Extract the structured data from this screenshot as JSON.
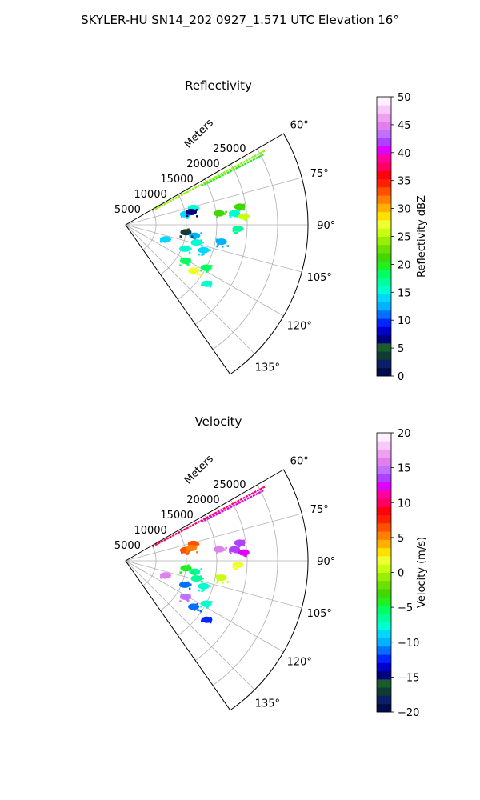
{
  "figure": {
    "suptitle": "SKYLER-HU  SN14_202  0927_1.571 UTC Elevation 16°"
  },
  "chart_data": [
    {
      "type": "polar-sector",
      "title": "Reflectivity",
      "radial_label": "Meters",
      "radial_ticks": [
        5000,
        10000,
        15000,
        20000,
        25000
      ],
      "radial_tick_labels": [
        "5000",
        "10000",
        "15000",
        "20000",
        "25000"
      ],
      "rmax": 30000,
      "azimuth_range_deg": [
        60,
        145
      ],
      "angle_ticks_deg": [
        60,
        75,
        90,
        105,
        120,
        135
      ],
      "angle_tick_labels": [
        "60°",
        "75°",
        "90°",
        "105°",
        "120°",
        "135°"
      ],
      "grid": true,
      "colorbar": {
        "label": "Reflectivity dBZ",
        "range": [
          0,
          50
        ],
        "ticks": [
          0,
          5,
          10,
          15,
          20,
          25,
          30,
          35,
          40,
          45,
          50
        ],
        "tick_labels": [
          "0",
          "5",
          "10",
          "15",
          "20",
          "25",
          "30",
          "35",
          "40",
          "45",
          "50"
        ],
        "colors": [
          "#000b4c",
          "#0a1f66",
          "#103a33",
          "#1a5c2c",
          "#00007f",
          "#0000cc",
          "#0026ff",
          "#0070ff",
          "#00b2ff",
          "#00d8ff",
          "#00ffd0",
          "#00ff9a",
          "#00ff60",
          "#20f020",
          "#40d800",
          "#6ce000",
          "#96f000",
          "#c8ff10",
          "#f0ff30",
          "#ffe000",
          "#ffb000",
          "#ff8000",
          "#ff5000",
          "#ff2000",
          "#ff0010",
          "#ff0060",
          "#ff00a0",
          "#e000ff",
          "#b040ff",
          "#c070ff",
          "#e080f0",
          "#f0a0f0",
          "#f8c8f8",
          "#fff0ff"
        ]
      },
      "echoes": [
        {
          "az": 62,
          "r0": 5000,
          "r1": 26000,
          "value": 24,
          "kind": "ray"
        },
        {
          "az": 63,
          "r0": 14000,
          "r1": 25500,
          "value": 20,
          "kind": "ray"
        },
        {
          "az": 80,
          "r": 10000,
          "value": 14,
          "kind": "blob"
        },
        {
          "az": 83,
          "r": 15500,
          "value": 21,
          "kind": "blob"
        },
        {
          "az": 84,
          "r": 18000,
          "value": 16,
          "kind": "blob"
        },
        {
          "az": 81,
          "r": 19000,
          "value": 22,
          "kind": "blob"
        },
        {
          "az": 86,
          "r": 19500,
          "value": 25,
          "kind": "blob"
        },
        {
          "az": 76,
          "r": 11500,
          "value": 15,
          "kind": "blob"
        },
        {
          "az": 99,
          "r": 11500,
          "value": 13,
          "kind": "blob"
        },
        {
          "az": 104,
          "r": 12000,
          "value": 15,
          "kind": "blob"
        },
        {
          "az": 110,
          "r": 7000,
          "value": 14,
          "kind": "blob"
        },
        {
          "az": 112,
          "r": 10500,
          "value": 16,
          "kind": "blob"
        },
        {
          "az": 108,
          "r": 13500,
          "value": 14,
          "kind": "blob"
        },
        {
          "az": 121,
          "r": 11500,
          "value": 18,
          "kind": "blob"
        },
        {
          "az": 124,
          "r": 13500,
          "value": 27,
          "kind": "blob"
        },
        {
          "az": 118,
          "r": 15000,
          "value": 19,
          "kind": "blob"
        },
        {
          "az": 126,
          "r": 16500,
          "value": 16,
          "kind": "blob"
        },
        {
          "az": 97,
          "r": 10000,
          "value": 4,
          "kind": "blob"
        },
        {
          "az": 79,
          "r": 11000,
          "value": 6,
          "kind": "blob"
        },
        {
          "az": 92,
          "r": 18500,
          "value": 17,
          "kind": "blob"
        },
        {
          "az": 100,
          "r": 16000,
          "value": 12,
          "kind": "blob"
        }
      ]
    },
    {
      "type": "polar-sector",
      "title": "Velocity",
      "radial_label": "Meters",
      "radial_ticks": [
        5000,
        10000,
        15000,
        20000,
        25000
      ],
      "radial_tick_labels": [
        "5000",
        "10000",
        "15000",
        "20000",
        "25000"
      ],
      "rmax": 30000,
      "azimuth_range_deg": [
        60,
        145
      ],
      "angle_ticks_deg": [
        60,
        75,
        90,
        105,
        120,
        135
      ],
      "angle_tick_labels": [
        "60°",
        "75°",
        "90°",
        "105°",
        "120°",
        "135°"
      ],
      "grid": true,
      "colorbar": {
        "label": "Velocity (m/s)",
        "range": [
          -20,
          20
        ],
        "ticks": [
          -20,
          -15,
          -10,
          -5,
          0,
          5,
          10,
          15,
          20
        ],
        "tick_labels": [
          "−20",
          "−15",
          "−10",
          "−5",
          "0",
          "5",
          "10",
          "15",
          "20"
        ],
        "colors": [
          "#000b4c",
          "#0a1f66",
          "#103a33",
          "#1a5c2c",
          "#00007f",
          "#0000cc",
          "#0026ff",
          "#0070ff",
          "#00b2ff",
          "#00d8ff",
          "#00ffd0",
          "#00ff9a",
          "#00ff60",
          "#20f020",
          "#40d800",
          "#6ce000",
          "#96f000",
          "#c8ff10",
          "#f0ff30",
          "#ffe000",
          "#ffb000",
          "#ff8000",
          "#ff5000",
          "#ff2000",
          "#ff0010",
          "#ff0060",
          "#ff00a0",
          "#e000ff",
          "#b040ff",
          "#c070ff",
          "#e080f0",
          "#f0a0f0",
          "#f8c8f8",
          "#fff0ff"
        ]
      },
      "echoes": [
        {
          "az": 62,
          "r0": 5000,
          "r1": 26000,
          "value": 10,
          "kind": "ray"
        },
        {
          "az": 63,
          "r0": 14000,
          "r1": 25500,
          "value": 12,
          "kind": "ray"
        },
        {
          "az": 80,
          "r": 10000,
          "value": 7,
          "kind": "blob"
        },
        {
          "az": 83,
          "r": 15500,
          "value": 16,
          "kind": "blob"
        },
        {
          "az": 84,
          "r": 18000,
          "value": 13,
          "kind": "blob"
        },
        {
          "az": 81,
          "r": 19000,
          "value": 14,
          "kind": "blob"
        },
        {
          "az": 86,
          "r": 19500,
          "value": 12,
          "kind": "blob"
        },
        {
          "az": 76,
          "r": 11500,
          "value": 7,
          "kind": "blob"
        },
        {
          "az": 99,
          "r": 11500,
          "value": -6,
          "kind": "blob"
        },
        {
          "az": 104,
          "r": 12000,
          "value": -7,
          "kind": "blob"
        },
        {
          "az": 110,
          "r": 7000,
          "value": 16,
          "kind": "blob"
        },
        {
          "az": 112,
          "r": 10500,
          "value": -11,
          "kind": "blob"
        },
        {
          "az": 108,
          "r": 13500,
          "value": -8,
          "kind": "blob"
        },
        {
          "az": 121,
          "r": 11500,
          "value": 15,
          "kind": "blob"
        },
        {
          "az": 124,
          "r": 13500,
          "value": -11,
          "kind": "blob"
        },
        {
          "az": 118,
          "r": 15000,
          "value": -8,
          "kind": "blob"
        },
        {
          "az": 126,
          "r": 16500,
          "value": -12,
          "kind": "blob"
        },
        {
          "az": 97,
          "r": 10000,
          "value": -4,
          "kind": "blob"
        },
        {
          "az": 79,
          "r": 11000,
          "value": 5,
          "kind": "blob"
        },
        {
          "az": 92,
          "r": 18500,
          "value": 2,
          "kind": "blob"
        },
        {
          "az": 100,
          "r": 16000,
          "value": 1,
          "kind": "blob"
        }
      ]
    }
  ]
}
